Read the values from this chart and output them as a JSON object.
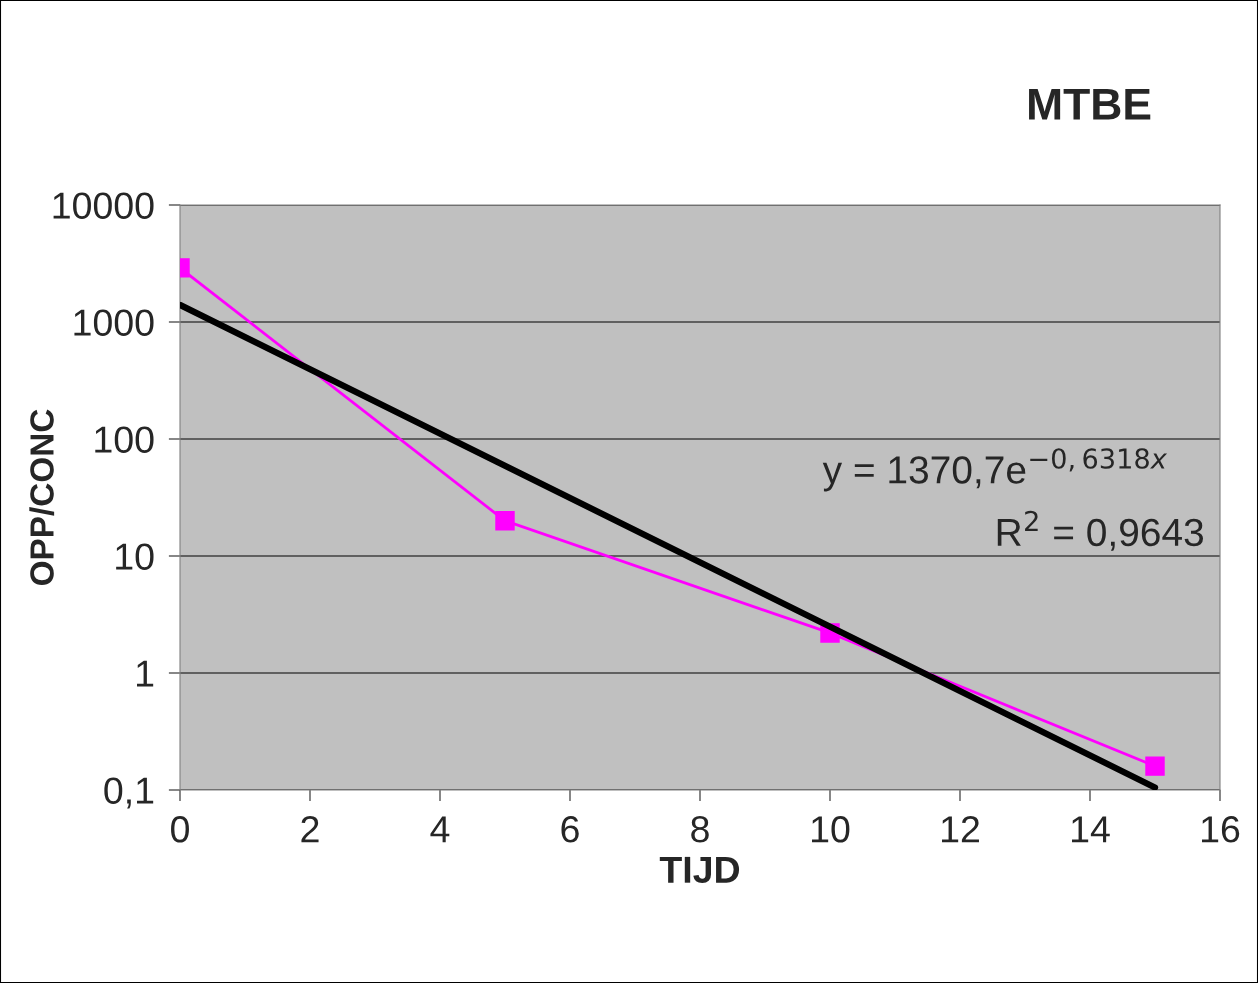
{
  "chart_data": {
    "type": "line",
    "title": "MTBE",
    "xlabel": "TIJD",
    "ylabel": "OPP/CONC",
    "series": [
      {
        "color": "#ff00ff",
        "marker": "square",
        "x": [
          0,
          5,
          10,
          15
        ],
        "values": [
          2900,
          20,
          2.2,
          0.16
        ]
      },
      {
        "color": "#000000",
        "marker": "none",
        "x": [
          0,
          15
        ],
        "values": [
          1400,
          0.105
        ]
      }
    ],
    "log": "y",
    "xlim": [
      0,
      16
    ],
    "xticks": [
      0,
      2,
      4,
      6,
      8,
      10,
      12,
      14,
      16
    ],
    "ylim": [
      0.1,
      10000
    ],
    "yticks": [
      {
        "value": 0.1,
        "label": "0,1"
      },
      1,
      10,
      100,
      1000,
      10000
    ],
    "grid": "y",
    "legend": false,
    "annotations": [
      "y = 1370,7e$^{−0,6318x}$",
      "R$^{2}$ = 0,9643"
    ]
  }
}
